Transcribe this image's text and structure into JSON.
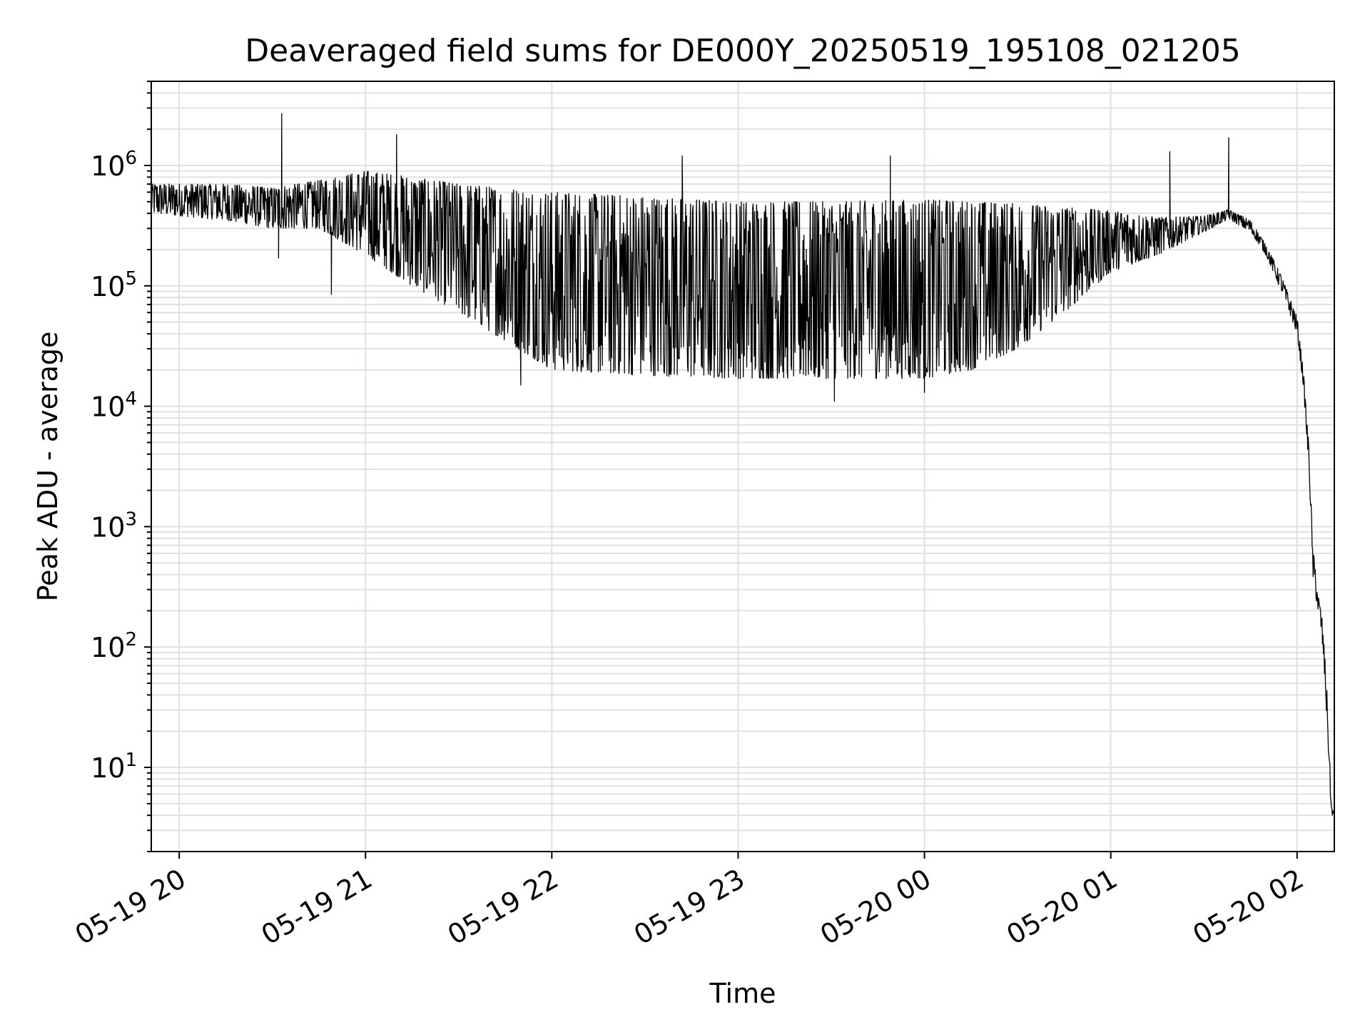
{
  "chart_data": {
    "type": "line",
    "title": "Deaveraged field sums for DE000Y_20250519_195108_021205",
    "xlabel": "Time",
    "ylabel": "Peak ADU - average",
    "yscale": "log",
    "ylim": [
      2,
      5000000
    ],
    "xlim": [
      "2025-05-19 19:51",
      "2025-05-20 02:12"
    ],
    "grid": true,
    "line_color": "#000000",
    "grid_color": "#e0e0e0",
    "x_ticks": [
      {
        "t": "2025-05-19 20:00",
        "label": "05-19 20"
      },
      {
        "t": "2025-05-19 21:00",
        "label": "05-19 21"
      },
      {
        "t": "2025-05-19 22:00",
        "label": "05-19 22"
      },
      {
        "t": "2025-05-19 23:00",
        "label": "05-19 23"
      },
      {
        "t": "2025-05-20 00:00",
        "label": "05-20 00"
      },
      {
        "t": "2025-05-20 01:00",
        "label": "05-20 01"
      },
      {
        "t": "2025-05-20 02:00",
        "label": "05-20 02"
      }
    ],
    "y_ticks": [
      {
        "value": 10,
        "base": "10",
        "exp": "1"
      },
      {
        "value": 100,
        "base": "10",
        "exp": "2"
      },
      {
        "value": 1000,
        "base": "10",
        "exp": "3"
      },
      {
        "value": 10000,
        "base": "10",
        "exp": "4"
      },
      {
        "value": 100000,
        "base": "10",
        "exp": "5"
      },
      {
        "value": 1000000,
        "base": "10",
        "exp": "6"
      }
    ],
    "series": [
      {
        "envelope": {
          "t": [
            "2025-05-19 19:51",
            "2025-05-19 20:15",
            "2025-05-19 20:30",
            "2025-05-19 20:45",
            "2025-05-19 21:00",
            "2025-05-19 21:15",
            "2025-05-19 21:30",
            "2025-05-19 21:45",
            "2025-05-19 22:00",
            "2025-05-19 22:30",
            "2025-05-19 23:00",
            "2025-05-19 23:30",
            "2025-05-20 00:00",
            "2025-05-20 00:15",
            "2025-05-20 00:30",
            "2025-05-20 00:45",
            "2025-05-20 01:00",
            "2025-05-20 01:15",
            "2025-05-20 01:30",
            "2025-05-20 01:38",
            "2025-05-20 01:45",
            "2025-05-20 01:50",
            "2025-05-20 01:55",
            "2025-05-20 02:00",
            "2025-05-20 02:02",
            "2025-05-20 02:04",
            "2025-05-20 02:05",
            "2025-05-20 02:07",
            "2025-05-20 02:08",
            "2025-05-20 02:09",
            "2025-05-20 02:10",
            "2025-05-20 02:11",
            "2025-05-20 02:12"
          ],
          "high": [
            700000,
            700000,
            650000,
            750000,
            900000,
            800000,
            700000,
            650000,
            600000,
            550000,
            500000,
            500000,
            520000,
            500000,
            480000,
            450000,
            420000,
            370000,
            380000,
            430000,
            350000,
            220000,
            120000,
            55000,
            20000,
            4000,
            700,
            250,
            180,
            80,
            30,
            5,
            4
          ],
          "low": [
            400000,
            350000,
            300000,
            300000,
            180000,
            100000,
            60000,
            35000,
            20000,
            18000,
            17000,
            17000,
            17000,
            20000,
            30000,
            60000,
            130000,
            180000,
            280000,
            360000,
            280000,
            180000,
            90000,
            40000,
            15000,
            2500,
            400,
            180,
            120,
            50,
            15,
            4,
            4
          ]
        },
        "spikes": [
          {
            "t": "2025-05-19 20:33",
            "value": 2700000
          },
          {
            "t": "2025-05-19 21:10",
            "value": 1800000
          },
          {
            "t": "2025-05-19 22:42",
            "value": 1200000
          },
          {
            "t": "2025-05-19 23:49",
            "value": 1200000
          },
          {
            "t": "2025-05-20 01:19",
            "value": 1300000
          },
          {
            "t": "2025-05-20 01:38",
            "value": 1700000
          },
          {
            "t": "2025-05-19 20:32",
            "value": 170000
          },
          {
            "t": "2025-05-19 20:49",
            "value": 85000
          },
          {
            "t": "2025-05-19 21:50",
            "value": 15000
          },
          {
            "t": "2025-05-19 23:31",
            "value": 11000
          },
          {
            "t": "2025-05-20 00:00",
            "value": 13000
          }
        ]
      }
    ]
  }
}
